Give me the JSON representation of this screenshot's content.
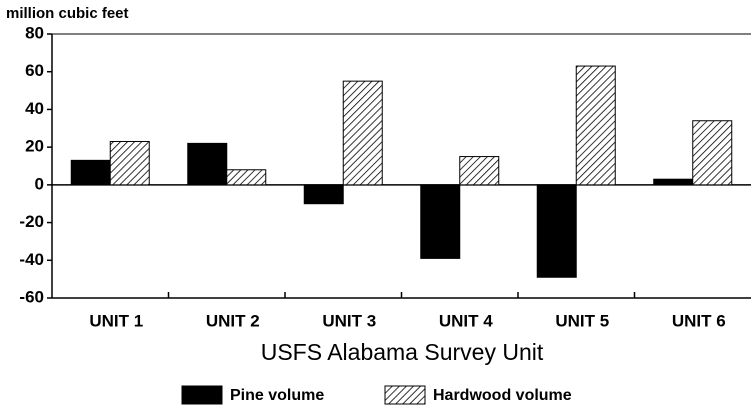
{
  "chart_data": {
    "type": "bar",
    "y_label": "million cubic feet",
    "x_label": "USFS Alabama Survey Unit",
    "categories": [
      "UNIT 1",
      "UNIT 2",
      "UNIT 3",
      "UNIT 4",
      "UNIT 5",
      "UNIT 6"
    ],
    "series": [
      {
        "name": "Pine volume",
        "color": "#000000",
        "pattern": "solid",
        "values": [
          13,
          22,
          -10,
          -39,
          -49,
          3
        ]
      },
      {
        "name": "Hardwood volume",
        "color": "#000000",
        "pattern": "hatch",
        "values": [
          23,
          8,
          55,
          15,
          63,
          34
        ]
      }
    ],
    "ylim": [
      -60,
      80
    ],
    "yticks": [
      -60,
      -40,
      -20,
      0,
      20,
      40,
      60,
      80
    ],
    "grid": false,
    "legend": "bottom"
  }
}
